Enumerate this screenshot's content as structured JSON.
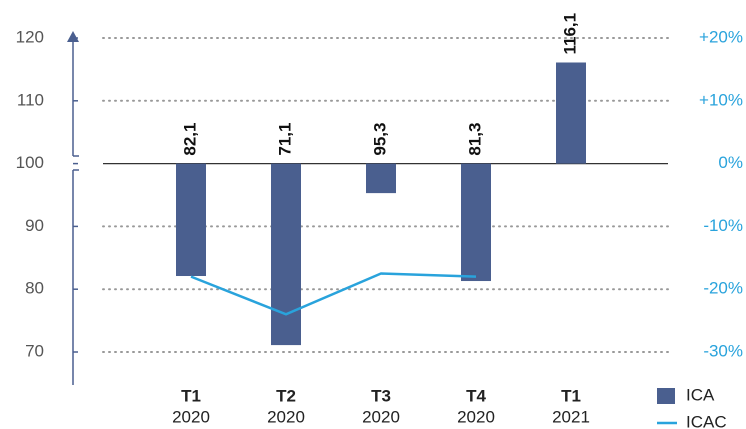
{
  "chart_data": {
    "type": "bar",
    "categories": [
      [
        "T1",
        "2020"
      ],
      [
        "T2",
        "2020"
      ],
      [
        "T3",
        "2020"
      ],
      [
        "T4",
        "2020"
      ],
      [
        "T1",
        "2021"
      ]
    ],
    "series": [
      {
        "name": "ICA",
        "color": "#4a5f8f",
        "values": [
          82.1,
          71.1,
          95.3,
          81.3,
          116.1
        ],
        "value_labels": [
          "82,1",
          "71,1",
          "95,3",
          "81,3",
          "116,1"
        ]
      },
      {
        "name": "ICAC",
        "type": "line",
        "axis": "y2",
        "color": "#29a3dc",
        "values": [
          -18,
          -24,
          -17.5,
          -18,
          null
        ]
      }
    ],
    "baseline": 100,
    "ylim": [
      70,
      120
    ],
    "yticks": [
      70,
      80,
      90,
      100,
      110,
      120
    ],
    "y2lim": [
      -30,
      20
    ],
    "y2ticks": [
      {
        "value": -30,
        "label": "-30%"
      },
      {
        "value": -20,
        "label": "-20%"
      },
      {
        "value": -10,
        "label": "-10%"
      },
      {
        "value": 0,
        "label": "0%"
      },
      {
        "value": 10,
        "label": "+10%"
      },
      {
        "value": 20,
        "label": "+20%"
      }
    ],
    "grid": true,
    "legend": "bottom-right"
  }
}
